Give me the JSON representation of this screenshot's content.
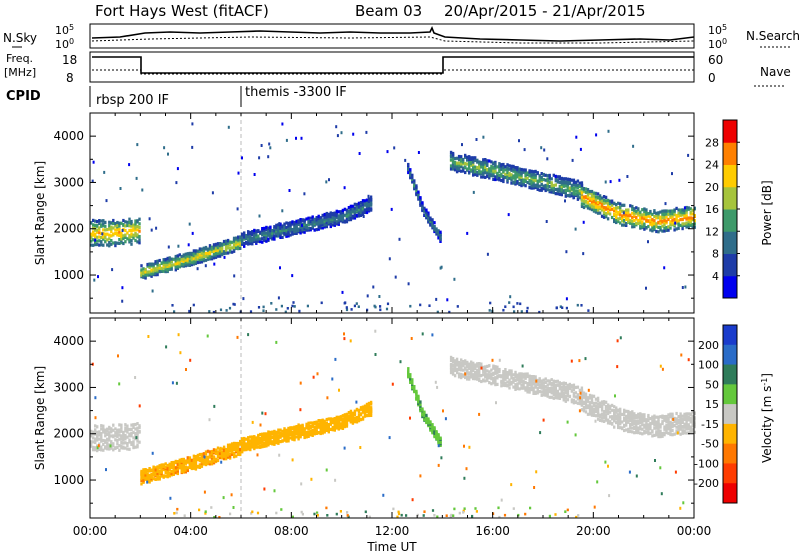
{
  "header": {
    "station": "Fort Hays West (fitACF)",
    "beam": "Beam 03",
    "date_range": "20/Apr/2015 - 21/Apr/2015"
  },
  "status_panels": {
    "noise": {
      "left_label": "N.Sky",
      "right_label": "N.Search",
      "left_ticks": [
        "10^5",
        "10^0"
      ],
      "right_ticks": [
        "10^5",
        "10^0"
      ]
    },
    "frequency": {
      "left_label_1": "Freq.",
      "left_label_2": "[MHz]",
      "right_label": "Nave",
      "left_ticks": [
        "18",
        "8"
      ],
      "right_ticks": [
        "60",
        "0"
      ]
    },
    "cpid": {
      "label": "CPID",
      "programs": [
        {
          "name": "rbsp 200 IF",
          "start_hour": 0
        },
        {
          "name": "themis -3300 IF",
          "start_hour": 6
        }
      ]
    }
  },
  "chart_data": [
    {
      "type": "scatter",
      "panel": "power",
      "ylabel": "Slant Range [km]",
      "y_ticks": [
        1000,
        2000,
        3000,
        4000
      ],
      "ylim": [
        180,
        4500
      ],
      "xlim": [
        0,
        24
      ],
      "colorbar": {
        "label": "Power [dB]",
        "range": [
          0,
          32
        ],
        "ticks": [
          4,
          8,
          12,
          16,
          20,
          24,
          28
        ],
        "colors": [
          "#0000ee",
          "#1e3ca8",
          "#2f6d8a",
          "#3e9a6a",
          "#a6c43c",
          "#ffcc00",
          "#ff8000",
          "#ee0000"
        ]
      },
      "echo_bands": [
        {
          "x": [
            0,
            1,
            2
          ],
          "y_center": [
            1900,
            1900,
            1950
          ],
          "y_half_width": 280,
          "power_db": 20
        },
        {
          "x": [
            2,
            4,
            6
          ],
          "y_center": [
            1050,
            1350,
            1700
          ],
          "y_half_width": 150,
          "power_db": 18
        },
        {
          "x": [
            6,
            8,
            10,
            11.2
          ],
          "y_center": [
            1750,
            2000,
            2250,
            2550
          ],
          "y_half_width": 150,
          "power_db": 10
        },
        {
          "x": [
            12.6,
            13.2,
            13.9
          ],
          "y_center": [
            3300,
            2400,
            1800
          ],
          "y_half_width": 100,
          "power_db": 10
        },
        {
          "x": [
            14.3,
            16,
            18,
            19.5
          ],
          "y_center": [
            3450,
            3250,
            3000,
            2800
          ],
          "y_half_width": 200,
          "power_db": 14
        },
        {
          "x": [
            19.5,
            21,
            22.5,
            24
          ],
          "y_center": [
            2700,
            2300,
            2150,
            2250
          ],
          "y_half_width": 230,
          "power_db": 22
        }
      ]
    },
    {
      "type": "scatter",
      "panel": "velocity",
      "xlabel": "Time UT",
      "ylabel": "Slant Range [km]",
      "y_ticks": [
        1000,
        2000,
        3000,
        4000
      ],
      "ylim": [
        180,
        4500
      ],
      "xlim": [
        0,
        24
      ],
      "x_ticks": [
        "00:00",
        "04:00",
        "08:00",
        "12:00",
        "16:00",
        "20:00",
        "00:00"
      ],
      "colorbar": {
        "label": "Velocity [m s^-1]",
        "ticks": [
          200,
          100,
          50,
          15,
          -15,
          -50,
          -100,
          -200
        ],
        "colors": [
          "#1a3ccc",
          "#2a6cc8",
          "#2f7c5a",
          "#64c83c",
          "#c8c8c4",
          "#ffb400",
          "#ff7800",
          "#ff3c00",
          "#ee0000"
        ]
      },
      "echo_bands": [
        {
          "x": [
            0,
            1,
            2
          ],
          "y_center": [
            1900,
            1900,
            1950
          ],
          "y_half_width": 280,
          "velocity": 0
        },
        {
          "x": [
            2,
            4,
            6
          ],
          "y_center": [
            1050,
            1350,
            1700
          ],
          "y_half_width": 150,
          "velocity": -40
        },
        {
          "x": [
            6,
            8,
            10,
            11.2
          ],
          "y_center": [
            1750,
            2000,
            2250,
            2550
          ],
          "y_half_width": 150,
          "velocity": -30
        },
        {
          "x": [
            12.6,
            13.2,
            13.9
          ],
          "y_center": [
            3300,
            2400,
            1800
          ],
          "y_half_width": 100,
          "velocity": 40
        },
        {
          "x": [
            14.3,
            16,
            18,
            19.5
          ],
          "y_center": [
            3450,
            3250,
            3000,
            2800
          ],
          "y_half_width": 200,
          "velocity": 0
        },
        {
          "x": [
            19.5,
            21,
            22.5,
            24
          ],
          "y_center": [
            2700,
            2300,
            2150,
            2250
          ],
          "y_half_width": 230,
          "velocity": 0
        }
      ]
    }
  ]
}
